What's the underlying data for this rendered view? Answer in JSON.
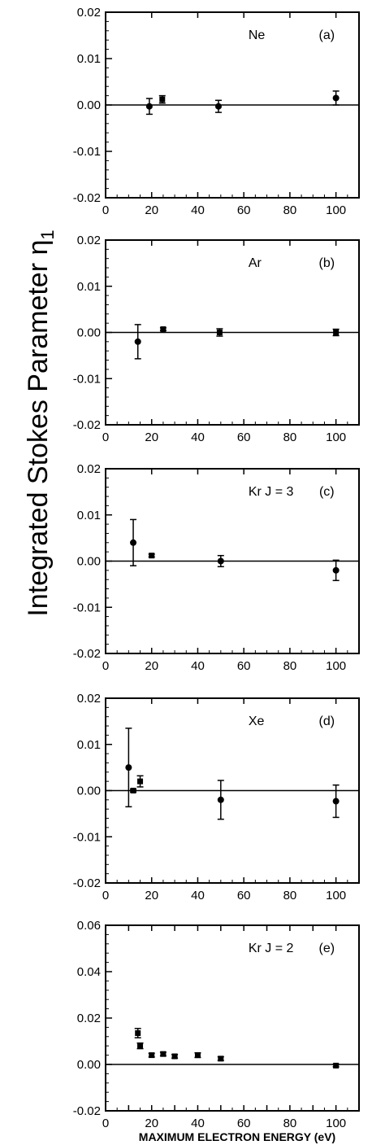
{
  "figure": {
    "ylabel": "Integrated Stokes Parameter η",
    "ylabel_subscript": "1",
    "xlabel": "MAXIMUM ELECTRON ENERGY (eV)"
  },
  "chart_data": [
    {
      "type": "scatter",
      "panel_label": "Ne",
      "panel_tag": "(a)",
      "xlim": [
        0,
        110
      ],
      "ylim": [
        -0.02,
        0.02
      ],
      "x_ticks": [
        0,
        20,
        40,
        60,
        80,
        100
      ],
      "y_ticks": [
        -0.02,
        -0.01,
        0.0,
        0.01,
        0.02
      ],
      "y_tick_labels": [
        "-0.02",
        "-0.01",
        "0.00",
        "0.01",
        "0.02"
      ],
      "zero_line": true,
      "points": [
        {
          "x": 19,
          "y": -0.0003,
          "err": 0.0017,
          "marker": "circle"
        },
        {
          "x": 24.6,
          "y": 0.0012,
          "err": 0.0008,
          "marker": "square"
        },
        {
          "x": 49,
          "y": -0.0003,
          "err": 0.0013,
          "marker": "circle"
        },
        {
          "x": 100,
          "y": 0.0015,
          "err": 0.0015,
          "marker": "circle"
        }
      ]
    },
    {
      "type": "scatter",
      "panel_label": "Ar",
      "panel_tag": "(b)",
      "xlim": [
        0,
        110
      ],
      "ylim": [
        -0.02,
        0.02
      ],
      "x_ticks": [
        0,
        20,
        40,
        60,
        80,
        100
      ],
      "y_ticks": [
        -0.02,
        -0.01,
        0.0,
        0.01,
        0.02
      ],
      "y_tick_labels": [
        "-0.02",
        "-0.01",
        "0.00",
        "0.01",
        "0.02"
      ],
      "zero_line": true,
      "points": [
        {
          "x": 14,
          "y": -0.002,
          "err": 0.0037,
          "marker": "circle"
        },
        {
          "x": 25,
          "y": 0.0007,
          "err": 0.0003,
          "marker": "square"
        },
        {
          "x": 49.5,
          "y": 0.0,
          "err": 0.0008,
          "marker": "square"
        },
        {
          "x": 100,
          "y": 0.0,
          "err": 0.0007,
          "marker": "square"
        }
      ]
    },
    {
      "type": "scatter",
      "panel_label": "Kr J = 3",
      "panel_tag": "(c)",
      "xlim": [
        0,
        110
      ],
      "ylim": [
        -0.02,
        0.02
      ],
      "x_ticks": [
        0,
        20,
        40,
        60,
        80,
        100
      ],
      "y_ticks": [
        -0.02,
        -0.01,
        0.0,
        0.01,
        0.02
      ],
      "y_tick_labels": [
        "-0.02",
        "-0.01",
        "0.00",
        "0.01",
        "0.02"
      ],
      "zero_line": true,
      "points": [
        {
          "x": 12,
          "y": 0.004,
          "err": 0.005,
          "marker": "circle"
        },
        {
          "x": 20,
          "y": 0.0012,
          "err": 0.0003,
          "marker": "square"
        },
        {
          "x": 50,
          "y": 0.0,
          "err": 0.0012,
          "marker": "circle"
        },
        {
          "x": 100,
          "y": -0.002,
          "err": 0.0022,
          "marker": "circle"
        }
      ]
    },
    {
      "type": "scatter",
      "panel_label": "Xe",
      "panel_tag": "(d)",
      "xlim": [
        0,
        110
      ],
      "ylim": [
        -0.02,
        0.02
      ],
      "x_ticks": [
        0,
        20,
        40,
        60,
        80,
        100
      ],
      "y_ticks": [
        -0.02,
        -0.01,
        0.0,
        0.01,
        0.02
      ],
      "y_tick_labels": [
        "-0.02",
        "-0.01",
        "0.00",
        "0.01",
        "0.02"
      ],
      "zero_line": true,
      "points": [
        {
          "x": 10,
          "y": 0.005,
          "err": 0.0085,
          "marker": "circle"
        },
        {
          "x": 12,
          "y": 0.0,
          "err": 0.0003,
          "marker": "square"
        },
        {
          "x": 15,
          "y": 0.002,
          "err": 0.0012,
          "marker": "square"
        },
        {
          "x": 50,
          "y": -0.002,
          "err": 0.0042,
          "marker": "circle"
        },
        {
          "x": 100,
          "y": -0.0023,
          "err": 0.0035,
          "marker": "circle"
        }
      ]
    },
    {
      "type": "scatter",
      "panel_label": "Kr J = 2",
      "panel_tag": "(e)",
      "xlim": [
        0,
        110
      ],
      "ylim": [
        -0.02,
        0.06
      ],
      "x_ticks": [
        0,
        10,
        20,
        30,
        40,
        50,
        60,
        70,
        80,
        90,
        100,
        110
      ],
      "x_tick_labels": [
        "0",
        "",
        "20",
        "",
        "40",
        "",
        "60",
        "",
        "80",
        "",
        "100",
        ""
      ],
      "y_ticks": [
        -0.02,
        0.0,
        0.02,
        0.04,
        0.06
      ],
      "y_tick_labels": [
        "-0.02",
        "0.00",
        "0.02",
        "0.04",
        "0.06"
      ],
      "zero_line": true,
      "points": [
        {
          "x": 14,
          "y": 0.0135,
          "err": 0.002,
          "marker": "square"
        },
        {
          "x": 15,
          "y": 0.008,
          "err": 0.0012,
          "marker": "square"
        },
        {
          "x": 20,
          "y": 0.004,
          "err": 0.0008,
          "marker": "square"
        },
        {
          "x": 25,
          "y": 0.0045,
          "err": 0.0008,
          "marker": "square"
        },
        {
          "x": 30,
          "y": 0.0035,
          "err": 0.0008,
          "marker": "square"
        },
        {
          "x": 40,
          "y": 0.004,
          "err": 0.001,
          "marker": "square"
        },
        {
          "x": 50,
          "y": 0.0025,
          "err": 0.0008,
          "marker": "square"
        },
        {
          "x": 100,
          "y": -0.0005,
          "err": 0.0005,
          "marker": "square"
        }
      ]
    }
  ]
}
